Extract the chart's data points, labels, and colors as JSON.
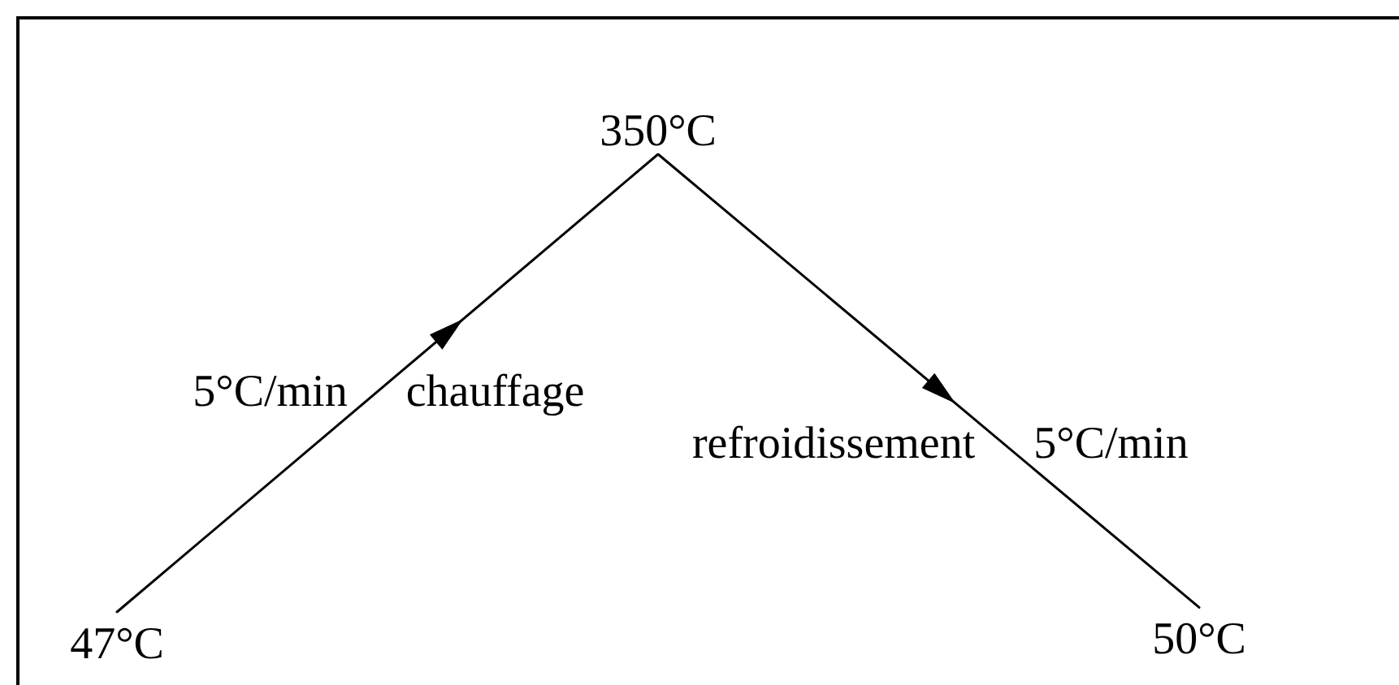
{
  "chart_data": {
    "type": "line",
    "categories": [
      null,
      null,
      null
    ],
    "values": [
      47,
      350,
      50
    ],
    "value_labels": [
      "47°C",
      "350°C",
      "50°C"
    ],
    "color": "#000000",
    "tick_labels": false,
    "annotations": [
      "5°C/min",
      "chauffage",
      "refroidissement",
      "5°C/min"
    ]
  }
}
